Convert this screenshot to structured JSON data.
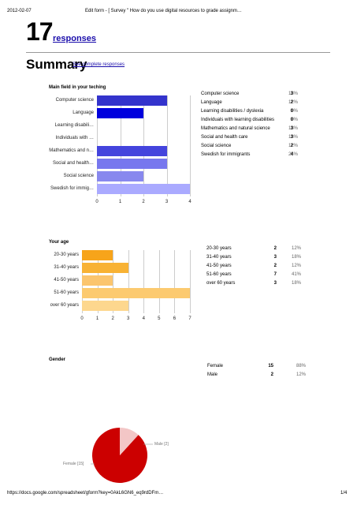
{
  "header": {
    "date": "2012-02-07",
    "title": "Edit form - [ Survey \" How do you use digital resources to grade assignm…"
  },
  "footer": {
    "url": "https://docs.google.com/spreadsheet/gform?key=0AkL6GN6_eq9rdDFm…",
    "page": "1/4"
  },
  "responses": {
    "count": "17",
    "label": "responses"
  },
  "summary": {
    "title": "Summary",
    "link": "See complete responses"
  },
  "q1": {
    "title": "Main field in your teching",
    "axis_labels": [
      "Computer science",
      "Language",
      "Learning disabili…",
      "Individuals with …",
      "Mathematics and n…",
      "Social and health…",
      "Social science",
      "Swedish for immig…"
    ],
    "rows": [
      {
        "label": "Computer science",
        "count": "3",
        "pct": "18%"
      },
      {
        "label": "Language",
        "count": "2",
        "pct": "12%"
      },
      {
        "label": "Learning disabilities / dyslexia",
        "count": "0",
        "pct": "0%"
      },
      {
        "label": "Individuals with learning disabilities",
        "count": "0",
        "pct": "0%"
      },
      {
        "label": "Mathematics and natural science",
        "count": "3",
        "pct": "18%"
      },
      {
        "label": "Social and health care",
        "count": "3",
        "pct": "18%"
      },
      {
        "label": "Social science",
        "count": "2",
        "pct": "12%"
      },
      {
        "label": "Swedish for immigrants",
        "count": "4",
        "pct": "24%"
      }
    ]
  },
  "q2": {
    "title": "Your age",
    "axis_labels": [
      "20-30 years",
      "31-40 years",
      "41-50 years",
      "51-60 years",
      "over 60 years"
    ],
    "rows": [
      {
        "label": "20-30 years",
        "count": "2",
        "pct": "12%"
      },
      {
        "label": "31-40 years",
        "count": "3",
        "pct": "18%"
      },
      {
        "label": "41-50 years",
        "count": "2",
        "pct": "12%"
      },
      {
        "label": "51-60 years",
        "count": "7",
        "pct": "41%"
      },
      {
        "label": "over 60 years",
        "count": "3",
        "pct": "18%"
      }
    ]
  },
  "q3": {
    "title": "Gender",
    "rows": [
      {
        "label": "Female",
        "count": "15",
        "pct": "88%"
      },
      {
        "label": "Male",
        "count": "2",
        "pct": "12%"
      }
    ],
    "pie_labels": {
      "male": "Male [2]",
      "female": "Female [15]"
    }
  },
  "chart_data": [
    {
      "type": "bar",
      "categories": [
        "Computer science",
        "Language",
        "Learning disabili…",
        "Individuals with …",
        "Mathematics and n…",
        "Social and health…",
        "Social science",
        "Swedish for immig…"
      ],
      "values": [
        3,
        2,
        0,
        0,
        3,
        3,
        2,
        4
      ],
      "colors": [
        "#3333cc",
        "#0000dd",
        "#2222dd",
        "#1111cc",
        "#4444dd",
        "#7777ee",
        "#8888ee",
        "#aaaaff"
      ],
      "title": "Main field in your teching",
      "xlim": [
        0,
        4
      ],
      "xticks": [
        "0",
        "1",
        "2",
        "3",
        "4"
      ],
      "orientation": "horizontal"
    },
    {
      "type": "bar",
      "categories": [
        "20-30 years",
        "31-40 years",
        "41-50 years",
        "51-60 years",
        "over 60 years"
      ],
      "values": [
        2,
        3,
        2,
        7,
        3
      ],
      "colors": [
        "#f7a41a",
        "#f8b234",
        "#fbc56e",
        "#fcca70",
        "#fdd78e"
      ],
      "title": "Your age",
      "xlim": [
        0,
        7
      ],
      "xticks": [
        "0",
        "1",
        "2",
        "3",
        "4",
        "5",
        "6",
        "7"
      ],
      "orientation": "horizontal"
    },
    {
      "type": "pie",
      "categories": [
        "Female",
        "Male"
      ],
      "values": [
        15,
        2
      ],
      "colors": [
        "#cc0000",
        "#f3c6c6"
      ],
      "title": "Gender"
    }
  ]
}
